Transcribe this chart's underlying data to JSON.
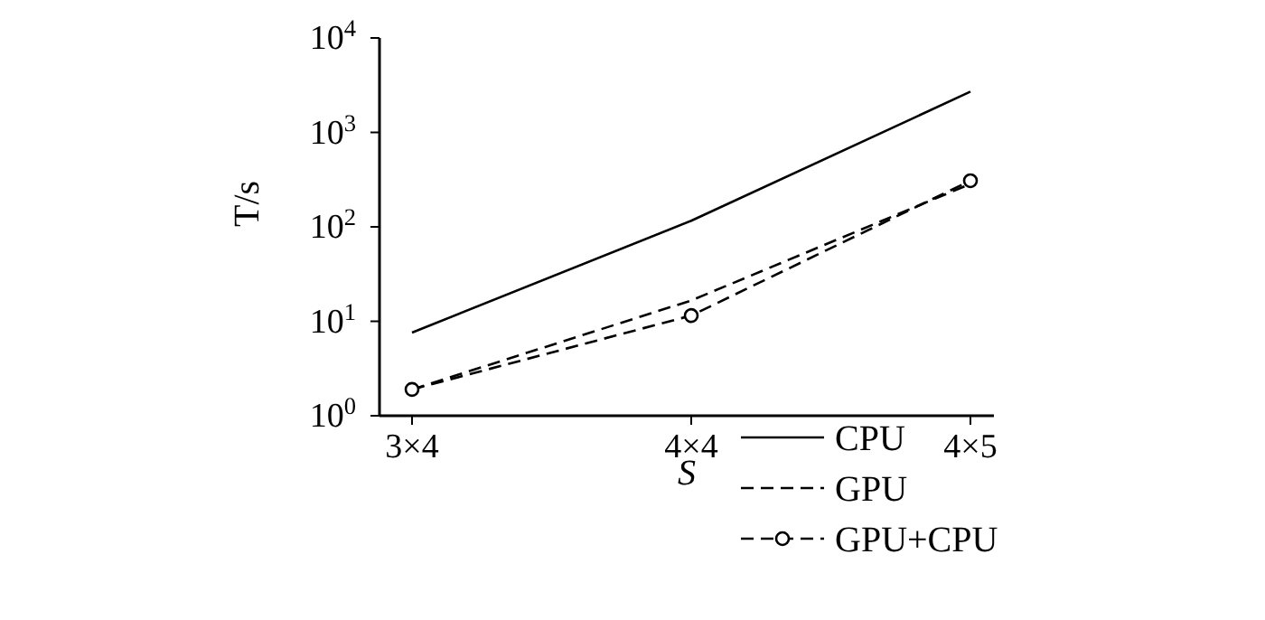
{
  "chart_data": {
    "type": "line",
    "xlabel": "S",
    "ylabel": "T/s",
    "categories": [
      "3×4",
      "4×4",
      "4×5"
    ],
    "log": true,
    "ylim": [
      1,
      10000
    ],
    "yticks": [
      {
        "value": 1,
        "label": "10$^{0}$"
      },
      {
        "value": 10,
        "label": "10$^{1}$"
      },
      {
        "value": 100,
        "label": "10$^{2}$"
      },
      {
        "value": 1000,
        "label": "10$^{3}$"
      },
      {
        "value": 10000,
        "label": "10$^{4}$"
      }
    ],
    "grid": false,
    "legend": "bottom right",
    "series": [
      {
        "name": "CPU",
        "color": "#000000",
        "line_style": "solid",
        "marker": "none",
        "values": [
          7.6,
          116,
          2700
        ]
      },
      {
        "name": "GPU",
        "color": "#000000",
        "line_style": "dashed",
        "marker": "none",
        "values": [
          1.9,
          16.6,
          285
        ]
      },
      {
        "name": "GPU+CPU",
        "color": "#000000",
        "line_style": "dashed",
        "marker": "circle",
        "values": [
          1.9,
          11.5,
          308
        ]
      }
    ]
  }
}
